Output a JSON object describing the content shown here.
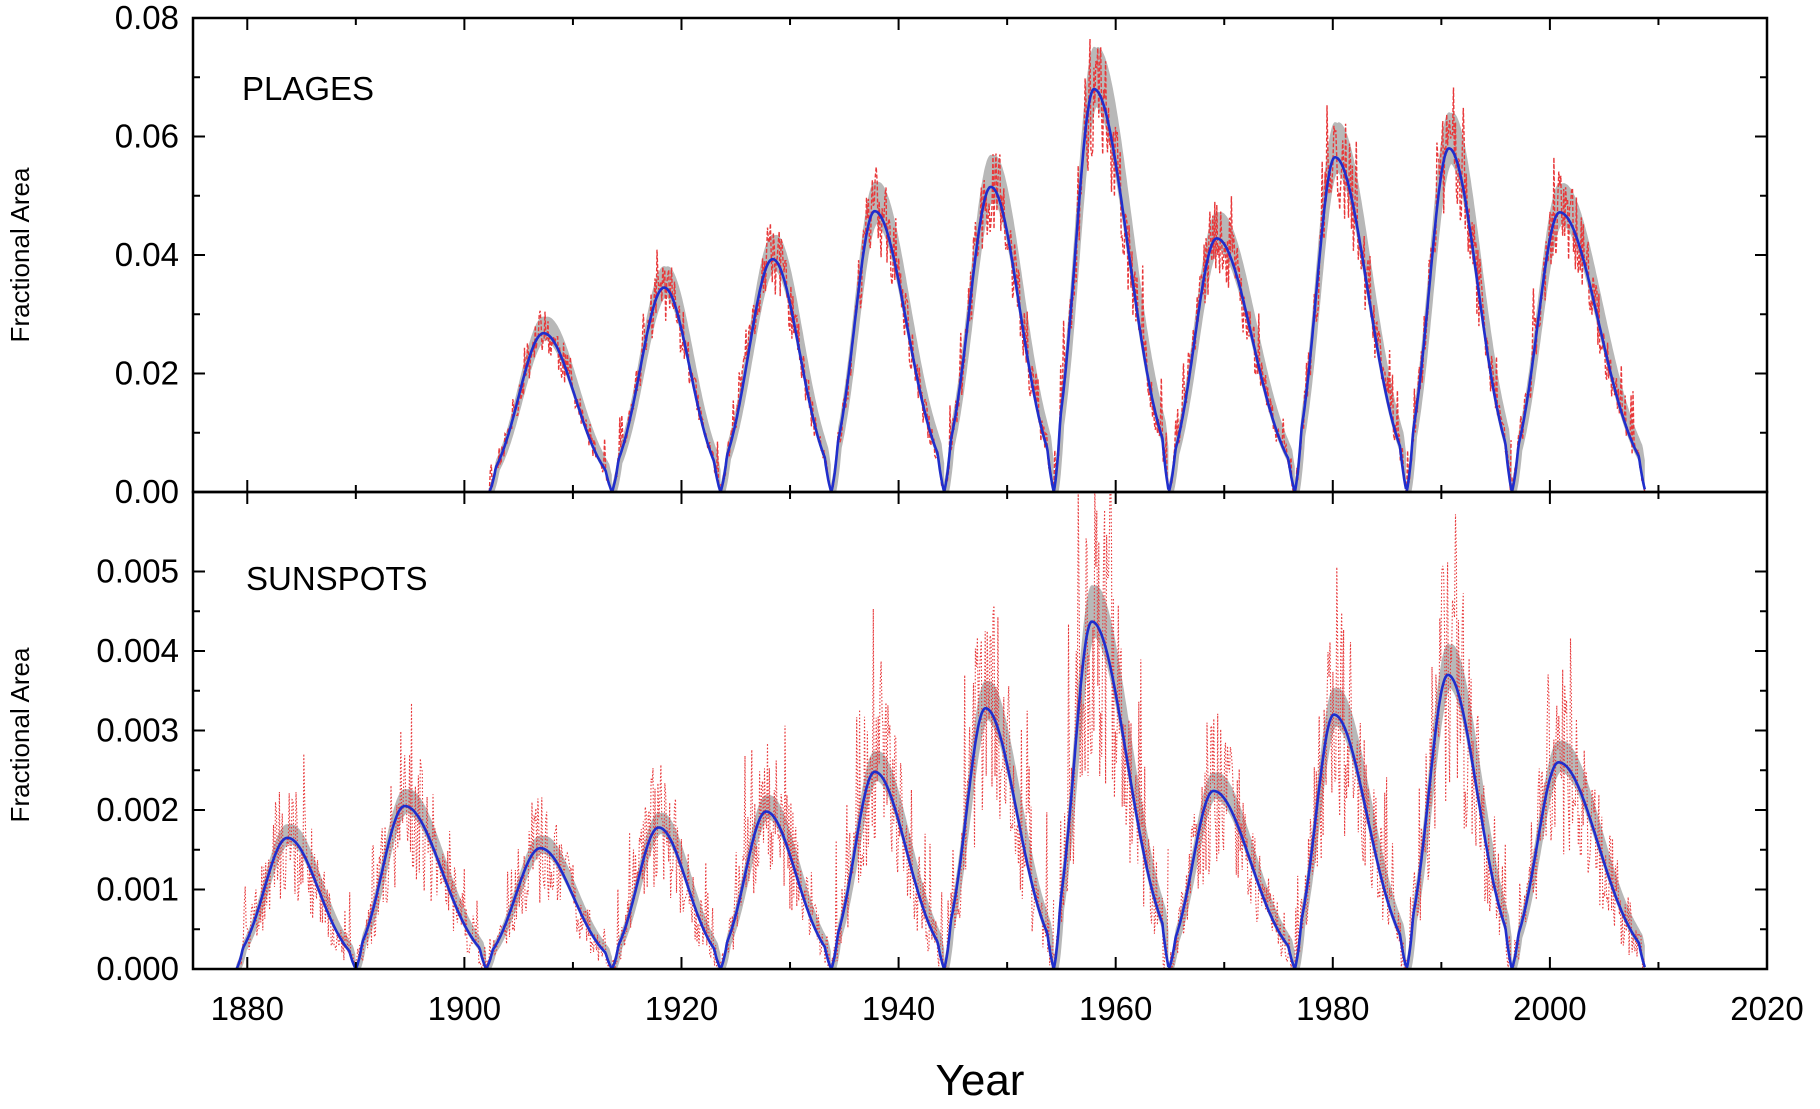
{
  "chart_data": [
    {
      "type": "line",
      "panel_label": "PLAGES",
      "ylabel": "Fractional Area",
      "xlabel": "Year",
      "xlim": [
        1875,
        2020
      ],
      "ylim": [
        0,
        0.08
      ],
      "x_ticks": [
        "1880",
        "1900",
        "1920",
        "1940",
        "1960",
        "1980",
        "2000",
        "2020"
      ],
      "y_ticks": [
        "0.00",
        "0.02",
        "0.04",
        "0.06",
        "0.08"
      ],
      "colors": {
        "fit": "#1f2ecc",
        "observed": "#e8383a",
        "band": "#b8b8b8"
      },
      "series": [
        {
          "style": "fit",
          "cycles": [
            {
              "start": 1902.3,
              "peak": 1907.3,
              "amplitude": 0.0268,
              "end": 1913.6
            },
            {
              "start": 1913.6,
              "peak": 1918.4,
              "amplitude": 0.0345,
              "end": 1923.6
            },
            {
              "start": 1923.6,
              "peak": 1928.4,
              "amplitude": 0.0393,
              "end": 1933.8
            },
            {
              "start": 1933.8,
              "peak": 1937.8,
              "amplitude": 0.0474,
              "end": 1944.2
            },
            {
              "start": 1944.2,
              "peak": 1948.5,
              "amplitude": 0.0515,
              "end": 1954.3
            },
            {
              "start": 1954.3,
              "peak": 1958.0,
              "amplitude": 0.068,
              "end": 1964.9
            },
            {
              "start": 1964.9,
              "peak": 1969.3,
              "amplitude": 0.0428,
              "end": 1976.5
            },
            {
              "start": 1976.5,
              "peak": 1980.2,
              "amplitude": 0.0565,
              "end": 1986.8
            },
            {
              "start": 1986.8,
              "peak": 1990.7,
              "amplitude": 0.058,
              "end": 1996.5
            },
            {
              "start": 1996.5,
              "peak": 2000.9,
              "amplitude": 0.0472,
              "end": 2008.8
            }
          ]
        }
      ]
    },
    {
      "type": "line",
      "panel_label": "SUNSPOTS",
      "ylabel": "Fractional Area",
      "xlabel": "Year",
      "xlim": [
        1875,
        2020
      ],
      "ylim": [
        0,
        0.006
      ],
      "x_ticks": [
        "1880",
        "1900",
        "1920",
        "1940",
        "1960",
        "1980",
        "2000",
        "2020"
      ],
      "y_ticks": [
        "0.000",
        "0.001",
        "0.002",
        "0.003",
        "0.004",
        "0.005"
      ],
      "colors": {
        "fit": "#1f2ecc",
        "observed": "#e8383a",
        "band": "#b8b8b8"
      },
      "series": [
        {
          "style": "fit",
          "cycles": [
            {
              "start": 1879.0,
              "peak": 1883.7,
              "amplitude": 0.00165,
              "end": 1890.0
            },
            {
              "start": 1890.0,
              "peak": 1894.5,
              "amplitude": 0.00205,
              "end": 1902.0
            },
            {
              "start": 1902.0,
              "peak": 1907.0,
              "amplitude": 0.00152,
              "end": 1913.6
            },
            {
              "start": 1913.6,
              "peak": 1917.9,
              "amplitude": 0.00178,
              "end": 1923.6
            },
            {
              "start": 1923.6,
              "peak": 1927.8,
              "amplitude": 0.00198,
              "end": 1933.8
            },
            {
              "start": 1933.8,
              "peak": 1937.8,
              "amplitude": 0.00248,
              "end": 1944.2
            },
            {
              "start": 1944.2,
              "peak": 1948.0,
              "amplitude": 0.00328,
              "end": 1954.3
            },
            {
              "start": 1954.3,
              "peak": 1957.8,
              "amplitude": 0.00437,
              "end": 1964.9
            },
            {
              "start": 1964.9,
              "peak": 1969.0,
              "amplitude": 0.00224,
              "end": 1976.5
            },
            {
              "start": 1976.5,
              "peak": 1980.1,
              "amplitude": 0.0032,
              "end": 1986.8
            },
            {
              "start": 1986.8,
              "peak": 1990.6,
              "amplitude": 0.0037,
              "end": 1996.5
            },
            {
              "start": 1996.5,
              "peak": 2000.8,
              "amplitude": 0.0026,
              "end": 2008.8
            }
          ]
        }
      ]
    }
  ]
}
